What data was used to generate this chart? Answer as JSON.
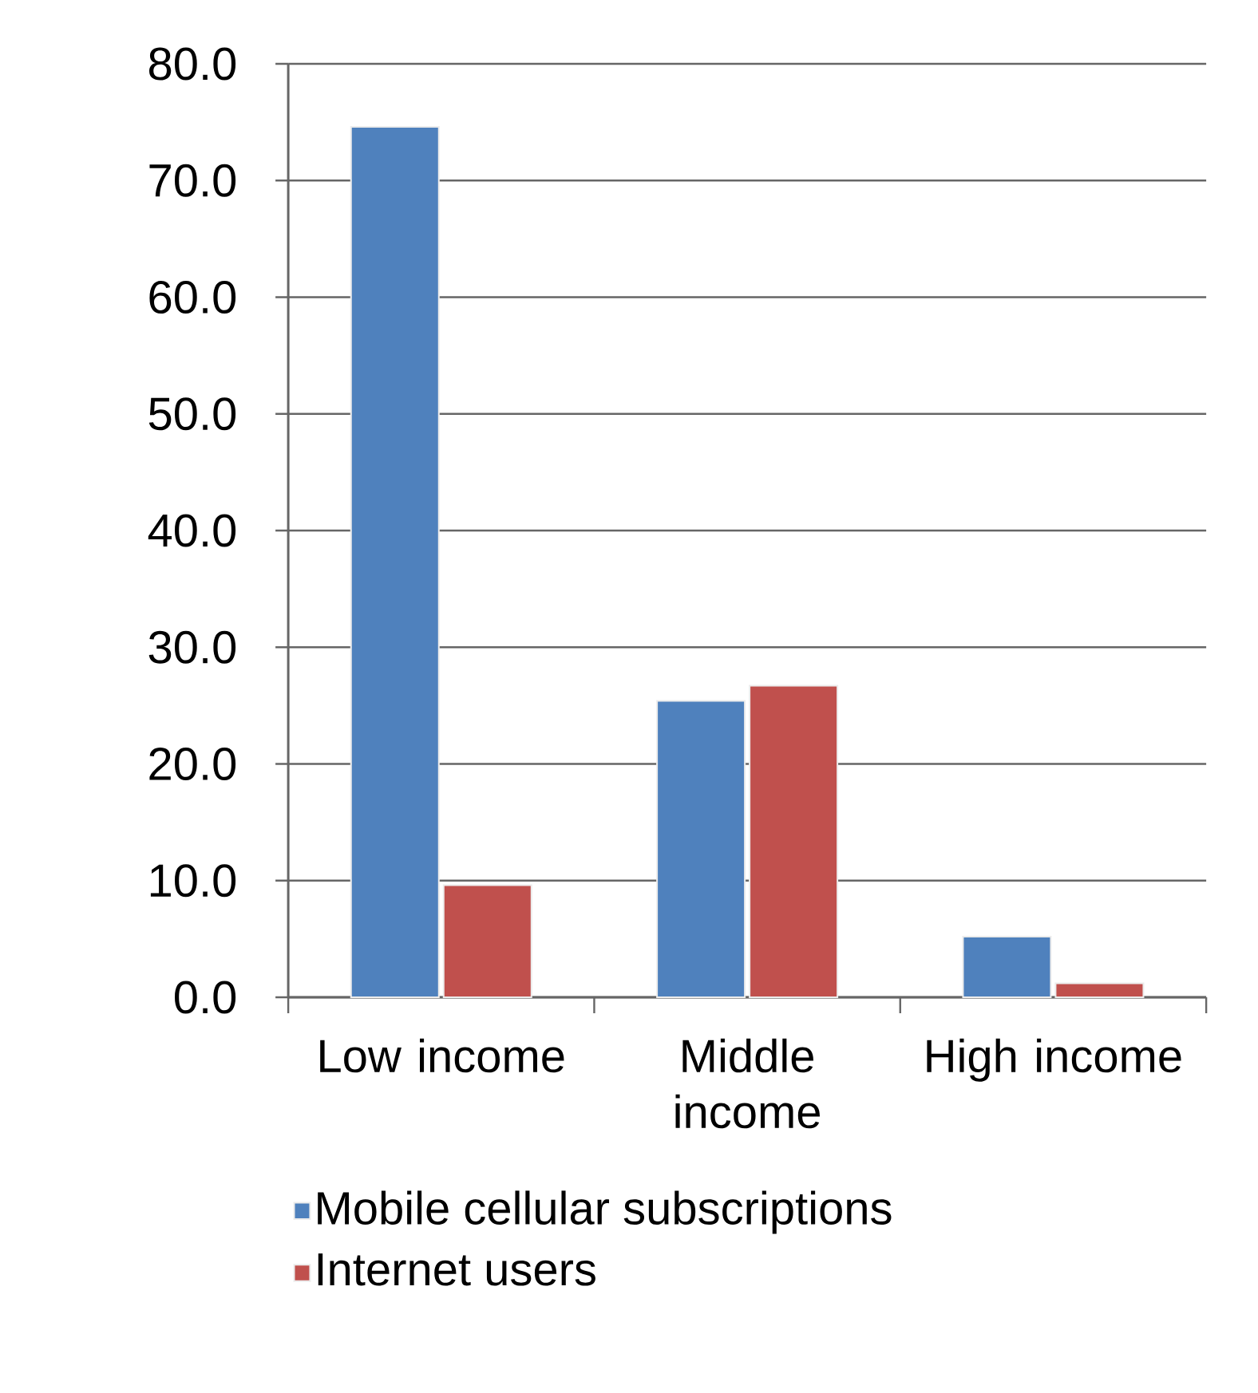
{
  "chart_data": {
    "type": "bar",
    "categories": [
      "Low income",
      "Middle income",
      "High income"
    ],
    "series": [
      {
        "name": "Mobile cellular subscriptions",
        "color": "#4f81bd",
        "values": [
          74.6,
          25.4,
          5.2
        ]
      },
      {
        "name": "Internet users",
        "color": "#c0504d",
        "values": [
          9.6,
          26.7,
          1.2
        ]
      }
    ],
    "ylim": [
      0,
      80
    ],
    "yticks": [
      {
        "value": 0,
        "label": "0.0"
      },
      {
        "value": 10,
        "label": "10.0"
      },
      {
        "value": 20,
        "label": "20.0"
      },
      {
        "value": 30,
        "label": "30.0"
      },
      {
        "value": 40,
        "label": "40.0"
      },
      {
        "value": 50,
        "label": "50.0"
      },
      {
        "value": 60,
        "label": "60.0"
      },
      {
        "value": 70,
        "label": "70.0"
      },
      {
        "value": 80,
        "label": "80.0"
      }
    ],
    "grid": "y",
    "legend": "bottom"
  }
}
